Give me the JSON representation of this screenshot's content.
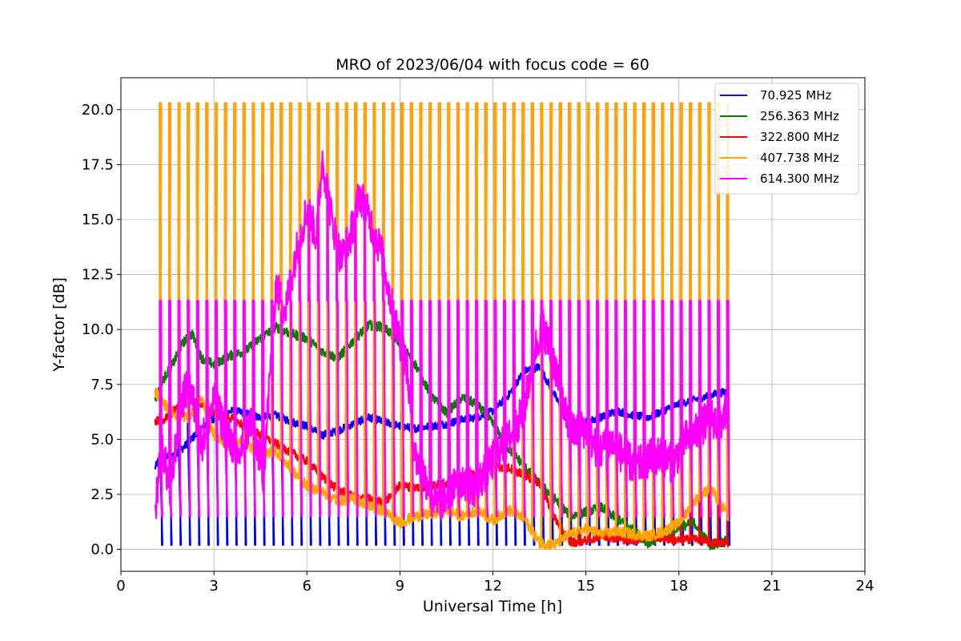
{
  "chart_data": {
    "type": "line",
    "title": "MRO of 2023/06/04 with focus code = 60",
    "xlabel": "Universal Time [h]",
    "ylabel": "Y-factor [dB]",
    "xlim": [
      0,
      24
    ],
    "ylim": [
      -1.0,
      21.45
    ],
    "x_ticks": [
      0,
      3,
      6,
      9,
      12,
      15,
      18,
      21,
      24
    ],
    "y_ticks": [
      0.0,
      2.5,
      5.0,
      7.5,
      10.0,
      12.5,
      15.0,
      17.5,
      20.0
    ],
    "x_tick_labels": [
      "0",
      "3",
      "6",
      "9",
      "12",
      "15",
      "18",
      "21",
      "24"
    ],
    "y_tick_labels": [
      "0.0",
      "2.5",
      "5.0",
      "7.5",
      "10.0",
      "12.5",
      "15.0",
      "17.5",
      "20.0"
    ],
    "grid": true,
    "legend_position": "upper right",
    "calibration_spikes": {
      "start": 1.25,
      "end": 19.6,
      "interval": 0.3
    },
    "series": [
      {
        "name": " 70.925 MHz",
        "color": "#0000ff",
        "x": [
          1.1,
          1.3,
          1.6,
          2.0,
          2.4,
          2.8,
          3.2,
          3.6,
          4.0,
          4.5,
          5.0,
          5.5,
          6.0,
          6.5,
          7.0,
          7.5,
          8.0,
          8.5,
          9.0,
          9.5,
          10.0,
          10.5,
          11.0,
          11.5,
          12.0,
          12.5,
          13.0,
          13.5,
          14.0,
          14.5,
          15.0,
          15.5,
          16.0,
          16.5,
          17.0,
          17.5,
          18.0,
          18.5,
          19.0,
          19.6
        ],
        "values": [
          3.7,
          4.3,
          4.2,
          4.6,
          5.2,
          5.8,
          6.1,
          6.3,
          6.2,
          6.0,
          6.1,
          5.8,
          5.6,
          5.2,
          5.4,
          5.7,
          6.0,
          5.8,
          5.6,
          5.5,
          5.6,
          5.7,
          5.9,
          6.0,
          6.3,
          7.0,
          8.1,
          8.3,
          7.0,
          5.5,
          5.8,
          6.0,
          6.3,
          6.1,
          6.0,
          6.3,
          6.6,
          6.8,
          7.0,
          7.2
        ],
        "spike_low": 0.2,
        "spike_high": 6.2
      },
      {
        "name": "256.363 MHz",
        "color": "#008000",
        "x": [
          1.1,
          1.4,
          1.7,
          2.0,
          2.3,
          2.6,
          3.0,
          3.5,
          4.0,
          4.5,
          5.0,
          5.5,
          6.0,
          6.5,
          7.0,
          7.5,
          8.0,
          8.5,
          9.0,
          9.5,
          10.0,
          10.5,
          11.0,
          11.5,
          12.0,
          12.5,
          13.0,
          13.5,
          14.0,
          14.5,
          15.0,
          15.5,
          16.0,
          16.5,
          17.0,
          17.5,
          18.0,
          18.5,
          19.0,
          19.6
        ],
        "values": [
          6.8,
          7.8,
          8.5,
          9.4,
          9.8,
          8.7,
          8.4,
          8.8,
          9.0,
          9.6,
          10.1,
          9.8,
          9.6,
          9.0,
          8.7,
          9.5,
          10.2,
          10.1,
          9.4,
          8.4,
          7.0,
          6.2,
          6.9,
          6.6,
          5.7,
          4.6,
          3.8,
          3.0,
          2.3,
          1.5,
          1.7,
          1.9,
          1.4,
          0.9,
          0.3,
          0.6,
          1.0,
          1.2,
          0.2,
          0.4
        ],
        "spike_low": null,
        "spike_high": null
      },
      {
        "name": "322.800 MHz",
        "color": "#ff0000",
        "x": [
          1.1,
          1.4,
          1.8,
          2.2,
          2.6,
          3.0,
          3.5,
          4.0,
          4.5,
          5.0,
          5.5,
          6.0,
          6.5,
          7.0,
          7.5,
          8.0,
          8.5,
          9.0,
          9.5,
          10.0,
          10.5,
          11.0,
          11.5,
          12.0,
          12.5,
          13.0,
          13.5,
          14.0,
          14.5,
          15.0,
          15.5,
          16.0,
          16.5,
          17.0,
          17.5,
          18.0,
          18.5,
          19.0,
          19.6
        ],
        "values": [
          5.8,
          5.9,
          6.4,
          6.8,
          6.6,
          6.2,
          6.0,
          5.6,
          5.2,
          4.8,
          4.4,
          4.0,
          3.3,
          2.7,
          2.4,
          2.3,
          2.1,
          2.9,
          2.8,
          2.9,
          3.0,
          3.3,
          3.4,
          3.8,
          3.7,
          3.4,
          3.0,
          1.4,
          0.3,
          0.4,
          0.6,
          0.5,
          0.4,
          0.6,
          0.5,
          0.4,
          0.5,
          0.3,
          0.3
        ],
        "spike_low": null,
        "spike_high": 20.3
      },
      {
        "name": "407.738 MHz",
        "color": "#ffa500",
        "x": [
          1.1,
          1.4,
          1.8,
          2.2,
          2.6,
          3.0,
          3.5,
          4.0,
          4.5,
          5.0,
          5.5,
          6.0,
          6.5,
          7.0,
          7.5,
          8.0,
          8.5,
          9.0,
          9.5,
          10.0,
          10.5,
          11.0,
          11.5,
          12.0,
          12.5,
          13.0,
          13.5,
          14.0,
          14.5,
          15.0,
          15.5,
          16.0,
          16.5,
          17.0,
          17.5,
          18.0,
          18.5,
          19.0,
          19.6
        ],
        "values": [
          7.2,
          6.6,
          6.1,
          6.0,
          6.9,
          5.2,
          4.7,
          4.9,
          4.2,
          4.5,
          3.6,
          2.9,
          2.6,
          2.2,
          2.3,
          2.0,
          1.7,
          1.2,
          1.5,
          1.6,
          1.8,
          1.5,
          1.8,
          1.3,
          1.8,
          1.4,
          0.3,
          0.2,
          0.7,
          0.9,
          0.7,
          0.8,
          0.7,
          0.6,
          0.8,
          1.2,
          2.2,
          2.8,
          1.5
        ],
        "spike_low": null,
        "spike_high": 20.3
      },
      {
        "name": "614.300 MHz",
        "color": "#ff00ff",
        "x": [
          1.1,
          1.3,
          1.6,
          1.9,
          2.2,
          2.6,
          3.0,
          3.4,
          3.8,
          4.2,
          4.6,
          5.0,
          5.3,
          5.6,
          6.0,
          6.3,
          6.5,
          6.8,
          7.1,
          7.4,
          7.7,
          8.0,
          8.4,
          8.8,
          9.2,
          9.5,
          9.8,
          10.2,
          10.6,
          11.0,
          11.4,
          11.8,
          12.2,
          12.6,
          13.0,
          13.3,
          13.6,
          14.0,
          14.3,
          14.6,
          15.0,
          15.4,
          15.8,
          16.2,
          16.6,
          17.0,
          17.4,
          17.8,
          18.2,
          18.6,
          19.0,
          19.3,
          19.6
        ],
        "values": [
          1.4,
          5.0,
          2.5,
          6.5,
          7.6,
          4.8,
          6.8,
          5.3,
          4.2,
          5.9,
          3.4,
          12.0,
          10.8,
          13.2,
          15.5,
          14.3,
          17.8,
          15.0,
          13.2,
          14.2,
          16.2,
          15.1,
          13.5,
          10.6,
          8.5,
          4.2,
          3.3,
          2.0,
          2.6,
          3.2,
          2.8,
          3.6,
          4.5,
          5.2,
          6.3,
          8.8,
          10.2,
          8.4,
          6.2,
          5.3,
          5.5,
          4.4,
          4.9,
          4.3,
          3.7,
          4.1,
          4.3,
          3.9,
          5.0,
          5.3,
          6.1,
          5.6,
          6.6
        ],
        "spike_low": 1.5,
        "spike_high": 11.3
      }
    ]
  }
}
